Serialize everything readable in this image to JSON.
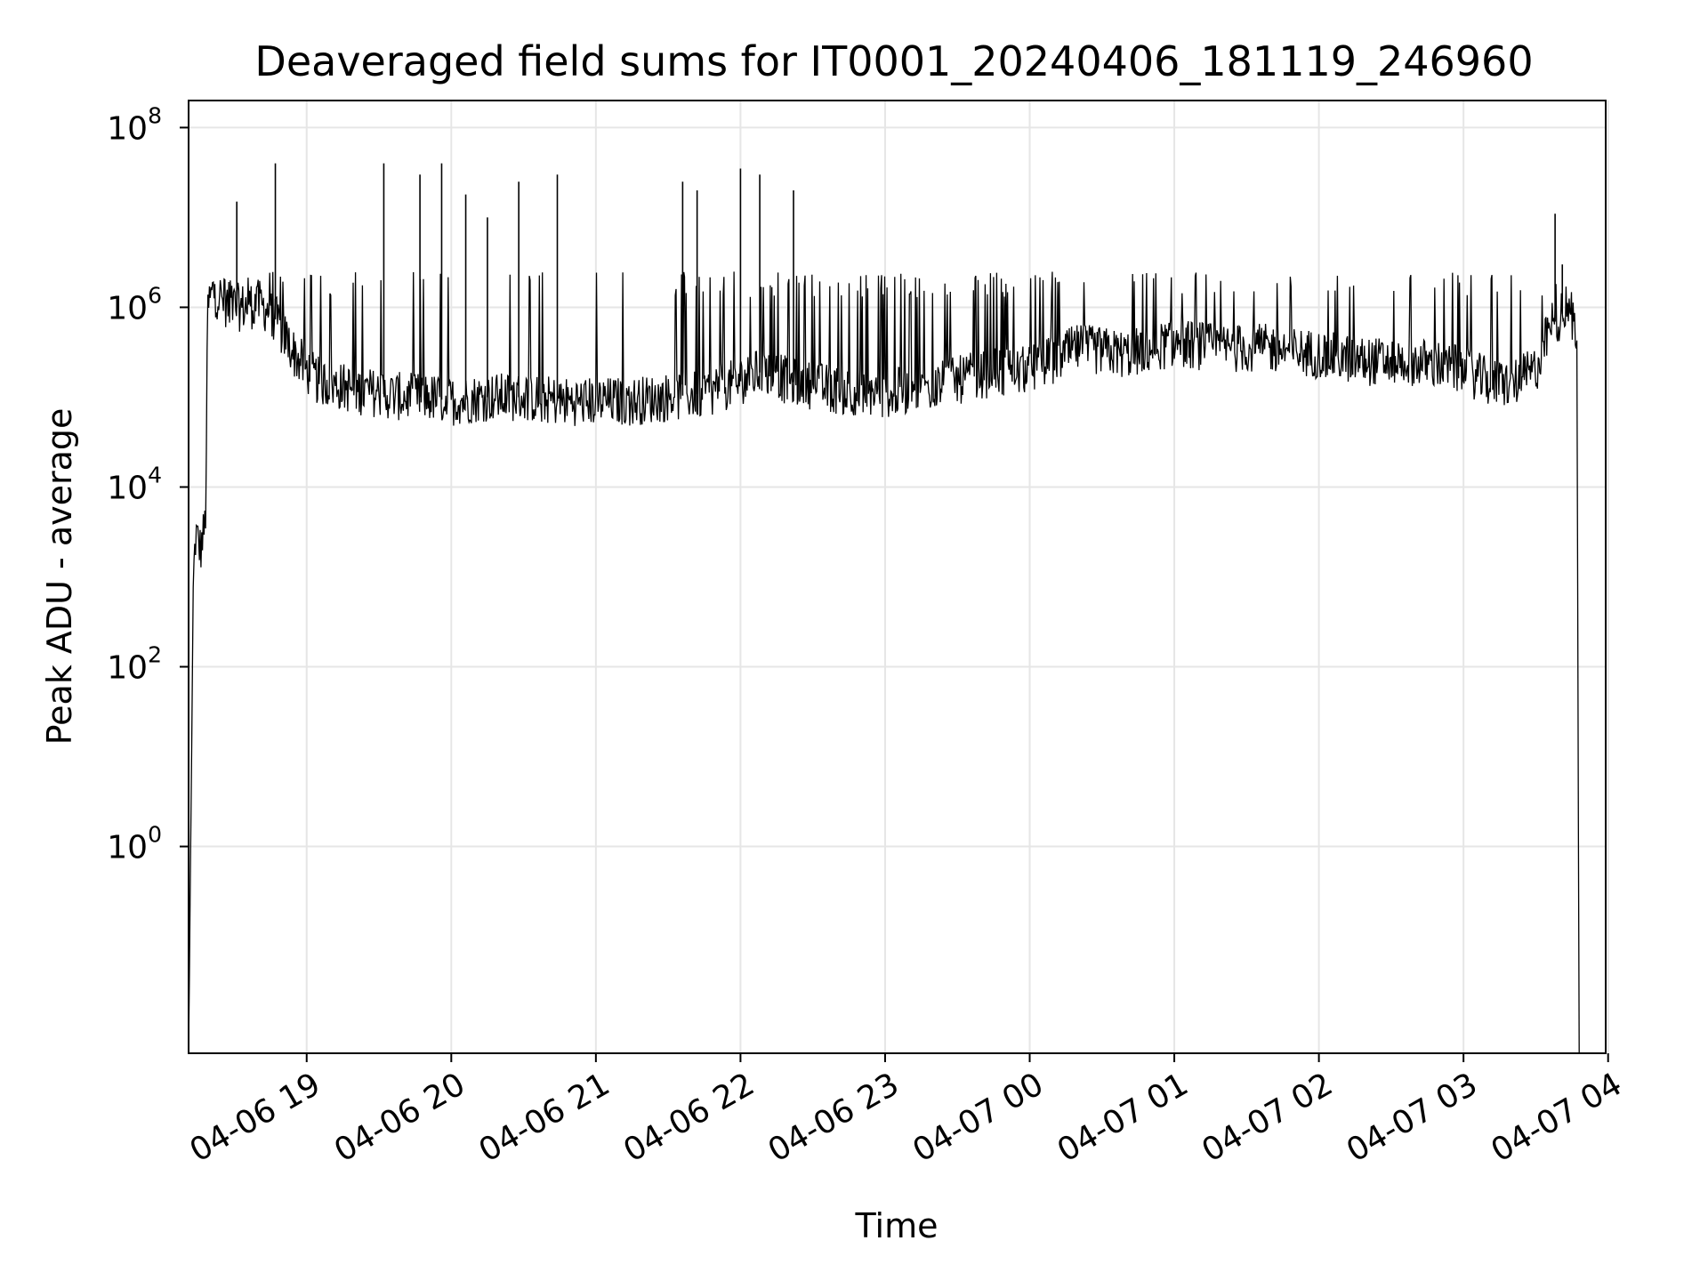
{
  "chart_data": {
    "type": "line",
    "title": "Deaveraged field sums for IT0001_20240406_181119_246960",
    "xlabel": "Time",
    "ylabel": "Peak ADU - average",
    "yscale": "log",
    "ylim": [
      0.005,
      200000000.0
    ],
    "xlim": [
      "2024-04-06 18:11",
      "2024-04-07 03:60"
    ],
    "grid": true,
    "x_ticks": [
      "04-06 19",
      "04-06 20",
      "04-06 21",
      "04-06 22",
      "04-06 23",
      "04-07 00",
      "04-07 01",
      "04-07 02",
      "04-07 03",
      "04-07 04"
    ],
    "y_ticks": [
      {
        "base": "10",
        "exp": "0"
      },
      {
        "base": "10",
        "exp": "2"
      },
      {
        "base": "10",
        "exp": "4"
      },
      {
        "base": "10",
        "exp": "6"
      },
      {
        "base": "10",
        "exp": "8"
      }
    ],
    "colors": {
      "line": "#000000",
      "grid": "#e6e6e6",
      "axes": "#000000"
    },
    "series": [
      {
        "x": [
          "04-06 18:11",
          "04-06 18:13",
          "04-06 18:14",
          "04-06 18:16",
          "04-06 18:18",
          "04-06 18:19",
          "04-06 18:21",
          "04-06 18:24",
          "04-06 18:28",
          "04-06 18:33",
          "04-06 18:40",
          "04-06 18:45",
          "04-06 18:49",
          "04-06 18:55",
          "04-06 19:00",
          "04-06 19:05",
          "04-06 19:10",
          "04-06 19:15",
          "04-06 19:20",
          "04-06 19:30",
          "04-06 19:40",
          "04-06 19:50",
          "04-06 20:00",
          "04-06 20:15",
          "04-06 20:30",
          "04-06 20:45",
          "04-06 21:00",
          "04-06 21:15",
          "04-06 21:30",
          "04-06 21:45",
          "04-06 22:00",
          "04-06 22:10",
          "04-06 22:20",
          "04-06 22:40",
          "04-06 23:00",
          "04-06 23:20",
          "04-06 23:40",
          "04-07 00:00",
          "04-07 00:20",
          "04-07 00:40",
          "04-07 01:00",
          "04-07 01:20",
          "04-07 01:40",
          "04-07 02:00",
          "04-07 02:20",
          "04-07 02:40",
          "04-07 03:00",
          "04-07 03:10",
          "04-07 03:20",
          "04-07 03:30",
          "04-07 03:36",
          "04-07 03:40",
          "04-07 03:44",
          "04-07 03:47",
          "04-07 03:48"
        ],
        "y": [
          0.005,
          1000,
          3000,
          2000,
          4000,
          1000000,
          1500000,
          1300000,
          1000000,
          1000000,
          1100000,
          900000,
          600000,
          300000,
          200000,
          150000,
          140000,
          130000,
          120000,
          110000,
          100000,
          100000,
          90000,
          100000,
          100000,
          90000,
          90000,
          90000,
          100000,
          110000,
          150000,
          200000,
          150000,
          120000,
          110000,
          130000,
          180000,
          200000,
          350000,
          300000,
          400000,
          350000,
          350000,
          300000,
          250000,
          250000,
          200000,
          150000,
          140000,
          200000,
          600000,
          800000,
          1000000,
          500000,
          0.005
        ]
      }
    ],
    "spikes": [
      {
        "x": "04-06 18:47",
        "y": 40000000
      },
      {
        "x": "04-06 18:31",
        "y": 15000000
      },
      {
        "x": "04-06 19:32",
        "y": 40000000
      },
      {
        "x": "04-06 19:47",
        "y": 30000000
      },
      {
        "x": "04-06 19:56",
        "y": 40000000
      },
      {
        "x": "04-06 20:06",
        "y": 18000000
      },
      {
        "x": "04-06 20:15",
        "y": 10000000
      },
      {
        "x": "04-06 20:28",
        "y": 25000000
      },
      {
        "x": "04-06 20:44",
        "y": 30000000
      },
      {
        "x": "04-06 21:36",
        "y": 25000000
      },
      {
        "x": "04-06 21:42",
        "y": 20000000
      },
      {
        "x": "04-06 22:00",
        "y": 35000000
      },
      {
        "x": "04-06 22:08",
        "y": 30000000
      },
      {
        "x": "04-06 22:22",
        "y": 20000000
      },
      {
        "x": "04-07 03:38",
        "y": 11000000
      },
      {
        "x": "04-07 03:41",
        "y": 3000000
      }
    ]
  }
}
